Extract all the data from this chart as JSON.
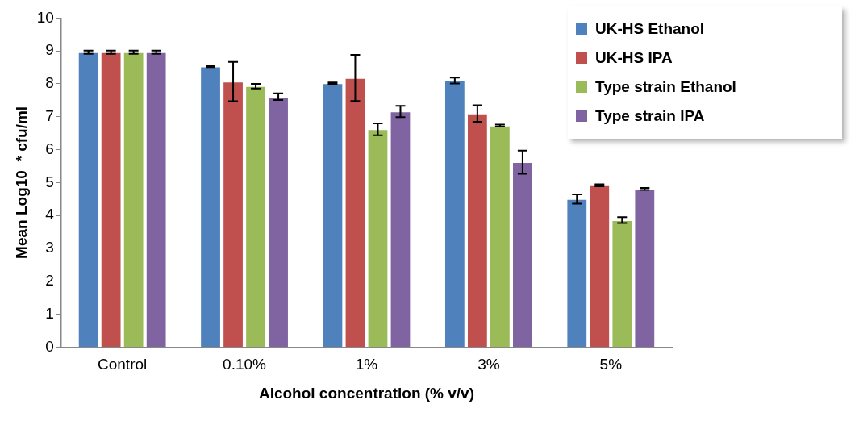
{
  "chart_data": {
    "type": "bar",
    "xlabel": "Alcohol concentration (% v/v)",
    "ylabel": "Mean Log10  * cfu/ml",
    "categories": [
      "Control",
      "0.10%",
      "1%",
      "3%",
      "5%"
    ],
    "series": [
      {
        "name": "UK-HS Ethanol",
        "color": "#4f81bd",
        "values": [
          8.96,
          8.53,
          8.02,
          8.1,
          4.5
        ],
        "errors": [
          0.05,
          0.02,
          0.02,
          0.09,
          0.14
        ]
      },
      {
        "name": "UK-HS IPA",
        "color": "#c0504d",
        "values": [
          8.96,
          8.07,
          8.18,
          7.1,
          4.92
        ],
        "errors": [
          0.05,
          0.6,
          0.7,
          0.25,
          0.03
        ]
      },
      {
        "name": "Type strain Ethanol",
        "color": "#9bbb59",
        "values": [
          8.96,
          7.93,
          6.62,
          6.73,
          3.86
        ],
        "errors": [
          0.05,
          0.07,
          0.18,
          0.03,
          0.09
        ]
      },
      {
        "name": "Type strain IPA",
        "color": "#8064a2",
        "values": [
          8.96,
          7.61,
          7.16,
          5.62,
          4.81
        ],
        "errors": [
          0.05,
          0.1,
          0.17,
          0.35,
          0.03
        ]
      }
    ],
    "ylim": [
      0,
      10
    ],
    "yticks": [
      0,
      1,
      2,
      3,
      4,
      5,
      6,
      7,
      8,
      9,
      10
    ],
    "grid": false,
    "legend": "top right"
  }
}
